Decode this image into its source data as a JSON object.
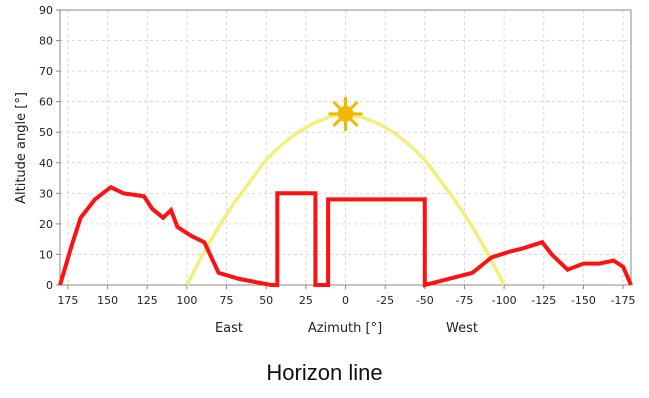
{
  "chart_data": {
    "type": "line",
    "title": "Horizon line",
    "xlabel": "Azimuth [°]",
    "ylabel": "Altitude angle [°]",
    "x_side_labels": {
      "left": "East",
      "right": "West"
    },
    "xlim": [
      180,
      -180
    ],
    "ylim": [
      0,
      90
    ],
    "x_ticks": [
      175,
      150,
      125,
      100,
      75,
      50,
      25,
      0,
      -25,
      -50,
      -75,
      -100,
      -125,
      -150,
      -175
    ],
    "y_ticks": [
      0,
      10,
      20,
      30,
      40,
      50,
      60,
      70,
      80,
      90
    ],
    "grid": true,
    "series": [
      {
        "kind": "horizon",
        "color": "#ff1111",
        "points": [
          [
            180,
            0
          ],
          [
            172,
            14
          ],
          [
            167,
            22
          ],
          [
            158,
            28
          ],
          [
            148,
            32
          ],
          [
            140,
            30
          ],
          [
            133,
            29.5
          ],
          [
            127,
            29
          ],
          [
            122,
            25
          ],
          [
            115,
            22
          ],
          [
            110,
            24.5
          ],
          [
            106,
            19
          ],
          [
            97,
            16
          ],
          [
            89,
            14
          ],
          [
            80,
            4
          ],
          [
            67,
            2
          ],
          [
            47,
            0
          ],
          [
            43,
            0
          ],
          [
            43,
            30
          ],
          [
            19,
            30
          ],
          [
            19,
            0
          ],
          [
            11,
            0
          ],
          [
            11,
            28
          ],
          [
            -50,
            28
          ],
          [
            -50,
            0
          ],
          [
            -80,
            4
          ],
          [
            -92,
            9
          ],
          [
            -104,
            11
          ],
          [
            -112,
            12
          ],
          [
            -124,
            14
          ],
          [
            -130,
            10
          ],
          [
            -140,
            5
          ],
          [
            -150,
            7
          ],
          [
            -160,
            7
          ],
          [
            -169,
            8
          ],
          [
            -175,
            6
          ],
          [
            -180,
            0
          ]
        ]
      },
      {
        "kind": "sun-path",
        "color": "#f2f07a",
        "points": [
          [
            100,
            0
          ],
          [
            90,
            10
          ],
          [
            80,
            19
          ],
          [
            70,
            27
          ],
          [
            60,
            34
          ],
          [
            50,
            41
          ],
          [
            40,
            46
          ],
          [
            30,
            50
          ],
          [
            20,
            53
          ],
          [
            10,
            55
          ],
          [
            0,
            56
          ],
          [
            -10,
            55
          ],
          [
            -20,
            53
          ],
          [
            -30,
            50
          ],
          [
            -40,
            46
          ],
          [
            -50,
            41
          ],
          [
            -60,
            34
          ],
          [
            -70,
            27
          ],
          [
            -80,
            19
          ],
          [
            -90,
            10
          ],
          [
            -100,
            0
          ]
        ]
      }
    ],
    "sun_marker": {
      "x": 0,
      "y": 56,
      "color": "#f5b800",
      "icon": "sun-icon"
    }
  }
}
